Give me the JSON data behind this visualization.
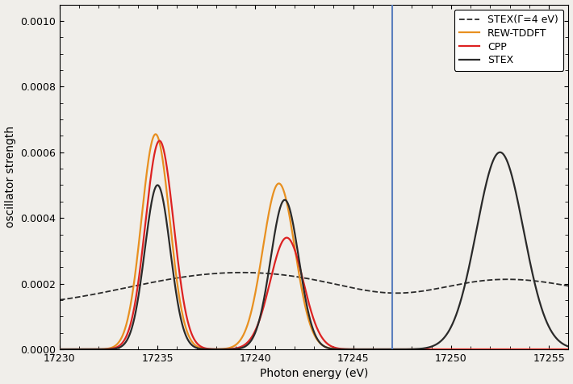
{
  "title": "",
  "xlabel": "Photon energy (eV)",
  "ylabel": "oscillator strength",
  "xlim": [
    17230,
    17256
  ],
  "ylim": [
    0.0,
    0.00105
  ],
  "yticks": [
    0.0,
    0.0002,
    0.0004,
    0.0006,
    0.0008,
    0.001
  ],
  "xticks": [
    17230,
    17235,
    17240,
    17245,
    17250,
    17255
  ],
  "vline_x": 17247.0,
  "vline_color": "#5b7fbe",
  "stex_color": "#2a2a2a",
  "cpp_color": "#dd2222",
  "rewtddft_color": "#e89020",
  "stex_broad_color": "#2a2a2a",
  "legend_labels": [
    "STEX",
    "CPP",
    "REW-TDDFT",
    "STEX(Γ=4 eV)"
  ],
  "background_color": "#f0eeea"
}
